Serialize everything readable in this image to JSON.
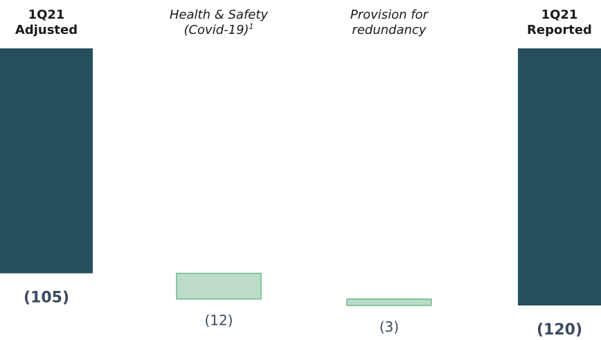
{
  "chart_data": {
    "type": "bar",
    "subtype": "waterfall",
    "categories": [
      {
        "lines": [
          "1Q21",
          "Adjusted"
        ],
        "sup": "",
        "style": "bold"
      },
      {
        "lines": [
          "Health & Safety",
          "(Covid-19)"
        ],
        "sup": "1",
        "style": "italic"
      },
      {
        "lines": [
          "Provision for",
          "redundancy"
        ],
        "sup": "",
        "style": "italic"
      },
      {
        "lines": [
          "1Q21",
          "Reported"
        ],
        "sup": "",
        "style": "bold"
      }
    ],
    "values": [
      -105,
      -12,
      -3,
      -120
    ],
    "value_labels": [
      "(105)",
      "(12)",
      "(3)",
      "(120)"
    ],
    "bar_kinds": [
      "total",
      "delta",
      "delta",
      "total"
    ],
    "ylim": [
      -120,
      0
    ],
    "grid": false,
    "colors": {
      "total": "#244f5b",
      "delta_fill": "#bcdcc9",
      "delta_stroke": "#6fb98b",
      "label_text": "#3a4a5e"
    }
  }
}
